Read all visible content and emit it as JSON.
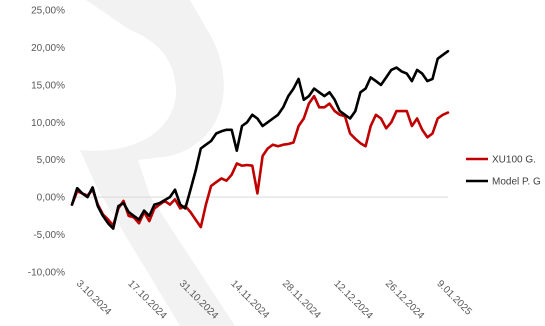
{
  "chart_data": {
    "type": "line",
    "title": "",
    "xlabel": "",
    "ylabel": "",
    "ylim": [
      -10,
      25
    ],
    "y_ticks": [
      -10,
      -5,
      0,
      5,
      10,
      15,
      20,
      25
    ],
    "y_tick_labels": [
      "-10,00%",
      "-5,00%",
      "0,00%",
      "5,00%",
      "10,00%",
      "15,00%",
      "20,00%",
      "25,00%"
    ],
    "x_tick_labels": [
      "3.10.2024",
      "17.10.2024",
      "31.10.2024",
      "14.11.2024",
      "28.11.2024",
      "12.12.2024",
      "26.12.2024",
      "9.01.2025"
    ],
    "x_tick_index": [
      0,
      10,
      20,
      30,
      40,
      50,
      60,
      70
    ],
    "grid": false,
    "legend_position": "right",
    "series": [
      {
        "name": "XU100 G.",
        "color": "#c00000",
        "values": [
          -1.0,
          0.8,
          0.5,
          0.2,
          1.0,
          -1.0,
          -2.3,
          -3.0,
          -3.8,
          -1.5,
          -0.5,
          -2.5,
          -2.7,
          -3.5,
          -2.0,
          -3.2,
          -1.5,
          -1.0,
          -0.5,
          -1.0,
          -0.3,
          -1.5,
          -1.2,
          -2.0,
          -3.0,
          -4.0,
          -1.0,
          1.5,
          2.0,
          2.5,
          2.2,
          3.0,
          4.5,
          4.2,
          4.3,
          4.2,
          0.5,
          5.5,
          6.5,
          7.0,
          6.8,
          7.0,
          7.1,
          7.3,
          9.5,
          10.5,
          12.5,
          13.5,
          12.0,
          12.0,
          12.5,
          11.5,
          11.0,
          10.8,
          8.5,
          7.8,
          7.2,
          6.8,
          9.5,
          11.0,
          10.5,
          9.2,
          10.0,
          11.5,
          11.5,
          11.5,
          9.5,
          10.5,
          9.0,
          8.0,
          8.5,
          10.5,
          11.0,
          11.3
        ]
      },
      {
        "name": "Model P. G",
        "color": "#000000",
        "values": [
          -1.0,
          1.2,
          0.5,
          0.0,
          1.3,
          -1.2,
          -2.5,
          -3.5,
          -4.2,
          -1.2,
          -0.8,
          -2.0,
          -2.5,
          -3.0,
          -1.8,
          -2.5,
          -1.0,
          -0.8,
          -0.4,
          0.0,
          1.0,
          -1.0,
          -1.5,
          1.0,
          3.5,
          6.5,
          7.0,
          7.5,
          8.5,
          8.8,
          9.0,
          9.0,
          6.2,
          9.5,
          10.0,
          11.0,
          10.5,
          9.5,
          10.0,
          10.5,
          11.0,
          12.0,
          13.5,
          14.5,
          15.8,
          13.0,
          13.5,
          14.5,
          14.0,
          13.5,
          14.0,
          13.0,
          11.5,
          11.0,
          10.5,
          11.5,
          14.0,
          14.5,
          16.0,
          15.5,
          15.0,
          16.0,
          17.0,
          17.3,
          16.8,
          16.5,
          15.5,
          17.0,
          16.5,
          15.5,
          15.8,
          18.5,
          19.0,
          19.5
        ]
      }
    ]
  }
}
